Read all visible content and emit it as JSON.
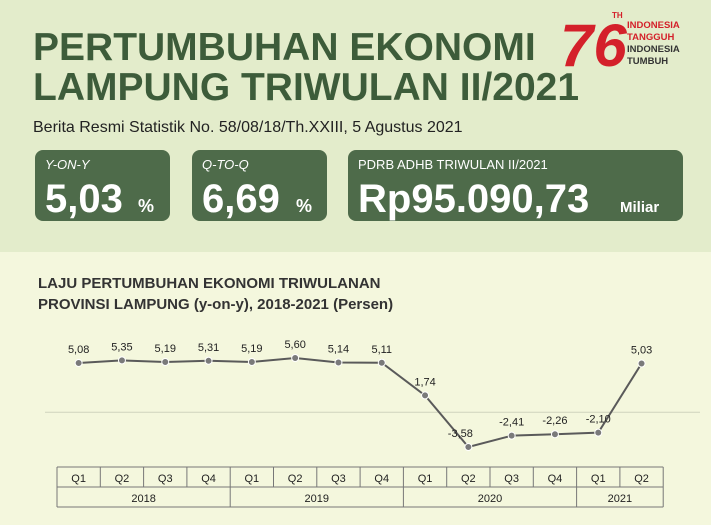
{
  "header": {
    "title_lines": [
      "PERTUMBUHAN EKONOMI",
      "LAMPUNG TRIWULAN II/2021"
    ],
    "subtitle": "Berita Resmi Statistik No. 58/08/18/Th.XXIII, 5 Agustus 2021"
  },
  "logo": {
    "number": "76",
    "suffix": "TH",
    "lines": [
      "INDONESIA",
      "TANGGUH",
      "INDONESIA",
      "TUMBUH"
    ]
  },
  "cards": [
    {
      "label": "Y-ON-Y",
      "value": "5,03",
      "unit": "%"
    },
    {
      "label": "Q-TO-Q",
      "value": "6,69",
      "unit": "%"
    },
    {
      "label": "PDRB ADHB TRIWULAN II/2021",
      "value": "Rp95.090,73",
      "unit": "Miliar"
    }
  ],
  "chart_data": {
    "type": "line",
    "title_lines": [
      "LAJU PERTUMBUHAN EKONOMI TRIWULANAN",
      "PROVINSI LAMPUNG (y-on-y), 2018-2021 (Persen)"
    ],
    "categories": [
      "Q1",
      "Q2",
      "Q3",
      "Q4",
      "Q1",
      "Q2",
      "Q3",
      "Q4",
      "Q1",
      "Q2",
      "Q3",
      "Q4",
      "Q1",
      "Q2"
    ],
    "category_groups": [
      "2018",
      "2018",
      "2018",
      "2018",
      "2019",
      "2019",
      "2019",
      "2019",
      "2020",
      "2020",
      "2020",
      "2020",
      "2021",
      "2021"
    ],
    "values": [
      5.08,
      5.35,
      5.19,
      5.31,
      5.19,
      5.6,
      5.14,
      5.11,
      1.74,
      -3.58,
      -2.41,
      -2.26,
      -2.1,
      5.03
    ],
    "value_labels": [
      "5,08",
      "5,35",
      "5,19",
      "5,31",
      "5,19",
      "5,60",
      "5,14",
      "5,11",
      "1,74",
      "-3,58",
      "-2,41",
      "-2,26",
      "-2,10",
      "5,03"
    ],
    "color": "#5a5a5a",
    "marker_color": "#7a7a7a"
  }
}
